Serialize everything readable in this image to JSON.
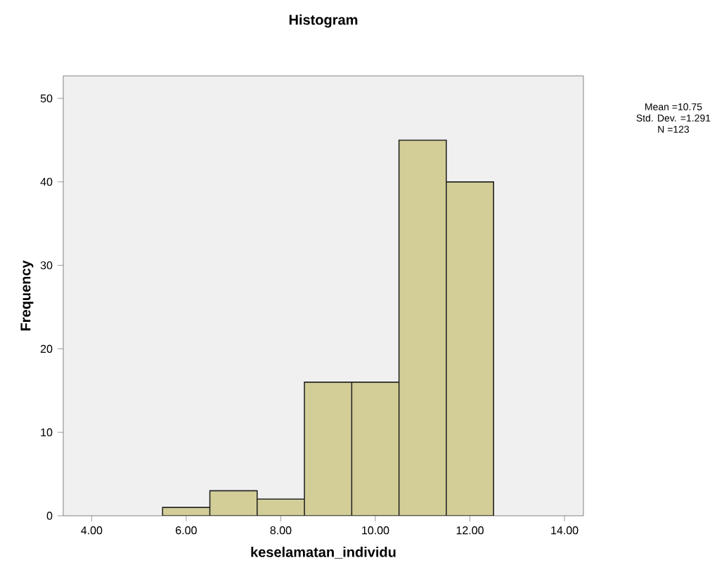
{
  "chart_data": {
    "type": "histogram",
    "title": "Histogram",
    "xlabel": "keselamatan_individu",
    "ylabel": "Frequency",
    "bins": [
      5.5,
      6.5,
      7.5,
      8.5,
      9.5,
      10.5,
      11.5,
      12.5
    ],
    "values": [
      1,
      3,
      2,
      16,
      16,
      45,
      40
    ],
    "color": "#d3ce97",
    "xlim": [
      3.4,
      14.4
    ],
    "ylim": [
      0,
      52.7
    ],
    "xticks": [
      {
        "value": 4,
        "label": "4.00"
      },
      {
        "value": 6,
        "label": "6.00"
      },
      {
        "value": 8,
        "label": "8.00"
      },
      {
        "value": 10,
        "label": "10.00"
      },
      {
        "value": 12,
        "label": "12.00"
      },
      {
        "value": 14,
        "label": "14.00"
      }
    ],
    "yticks": [
      0,
      10,
      20,
      30,
      40,
      50
    ],
    "annotations": [
      "Mean =10.75",
      "Std. Dev. =1.291",
      "N =123"
    ],
    "grid": false
  }
}
